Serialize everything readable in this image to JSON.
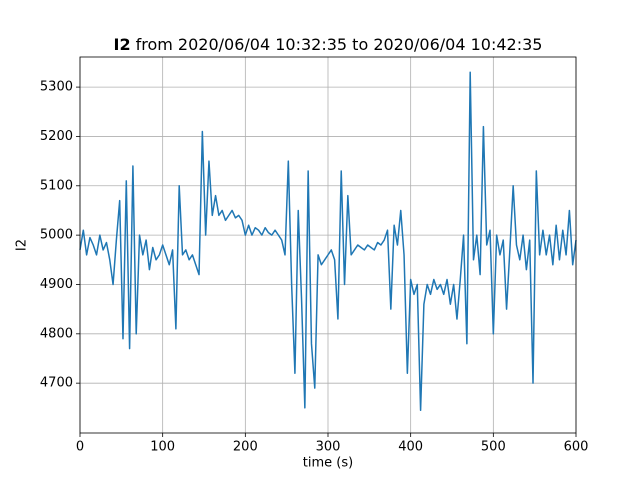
{
  "chart_data": {
    "type": "line",
    "title_bold": "I2",
    "title": "from 2020/06/04 10:32:35 to 2020/06/04 10:42:35",
    "x_label": "time (s)",
    "y_label": "I2",
    "x": [
      0,
      4,
      8,
      12,
      16,
      20,
      24,
      28,
      32,
      36,
      40,
      44,
      48,
      52,
      56,
      60,
      64,
      68,
      72,
      76,
      80,
      84,
      88,
      92,
      96,
      100,
      104,
      108,
      112,
      116,
      120,
      124,
      128,
      132,
      136,
      140,
      144,
      148,
      152,
      156,
      160,
      164,
      168,
      172,
      176,
      180,
      184,
      188,
      192,
      196,
      200,
      204,
      208,
      212,
      216,
      220,
      224,
      228,
      232,
      236,
      240,
      244,
      248,
      252,
      256,
      260,
      264,
      268,
      272,
      276,
      280,
      284,
      288,
      292,
      296,
      300,
      304,
      308,
      312,
      316,
      320,
      324,
      328,
      332,
      336,
      340,
      344,
      348,
      352,
      356,
      360,
      364,
      368,
      372,
      376,
      380,
      384,
      388,
      392,
      396,
      400,
      404,
      408,
      412,
      416,
      420,
      424,
      428,
      432,
      436,
      440,
      444,
      448,
      452,
      456,
      460,
      464,
      468,
      472,
      476,
      480,
      484,
      488,
      492,
      496,
      500,
      504,
      508,
      512,
      516,
      520,
      524,
      528,
      532,
      536,
      540,
      544,
      548,
      552,
      556,
      560,
      564,
      568,
      572,
      576,
      580,
      584,
      588,
      592,
      596,
      600
    ],
    "series": [
      {
        "color": "#1f77b4",
        "values": [
          4970,
          5010,
          4960,
          4995,
          4980,
          4960,
          5000,
          4970,
          4985,
          4950,
          4900,
          4990,
          5070,
          4790,
          5110,
          4770,
          5140,
          4800,
          5000,
          4960,
          4990,
          4930,
          4975,
          4950,
          4960,
          4980,
          4960,
          4940,
          4970,
          4810,
          5100,
          4960,
          4970,
          4950,
          4960,
          4940,
          4920,
          5210,
          5000,
          5150,
          5040,
          5080,
          5040,
          5050,
          5030,
          5040,
          5050,
          5035,
          5040,
          5030,
          5000,
          5020,
          5000,
          5015,
          5010,
          5000,
          5015,
          5005,
          5000,
          5010,
          5000,
          4990,
          4960,
          5150,
          4900,
          4720,
          5050,
          4870,
          4650,
          5130,
          4780,
          4690,
          4960,
          4940,
          4950,
          4960,
          4970,
          4950,
          4830,
          5130,
          4900,
          5080,
          4960,
          4970,
          4980,
          4975,
          4970,
          4980,
          4975,
          4970,
          4985,
          4980,
          4990,
          5010,
          4850,
          5020,
          4980,
          5050,
          4960,
          4720,
          4910,
          4880,
          4900,
          4645,
          4860,
          4900,
          4880,
          4910,
          4890,
          4900,
          4880,
          4910,
          4860,
          4900,
          4830,
          4910,
          5000,
          4780,
          5330,
          4950,
          5000,
          4920,
          5220,
          4980,
          5010,
          4800,
          5000,
          4960,
          4990,
          4850,
          4970,
          5100,
          4980,
          4950,
          5000,
          4930,
          4990,
          4700,
          5130,
          4960,
          5010,
          4960,
          5000,
          4940,
          5020,
          4950,
          5010,
          4960,
          5050,
          4940,
          4990
        ]
      }
    ],
    "xlim": [
      0,
      600
    ],
    "xticks": [
      0,
      100,
      200,
      300,
      400,
      500,
      600
    ],
    "ylim": [
      4599,
      5361
    ],
    "yticks": [
      4700,
      4800,
      4900,
      5000,
      5100,
      5200,
      5300
    ],
    "grid": true
  }
}
